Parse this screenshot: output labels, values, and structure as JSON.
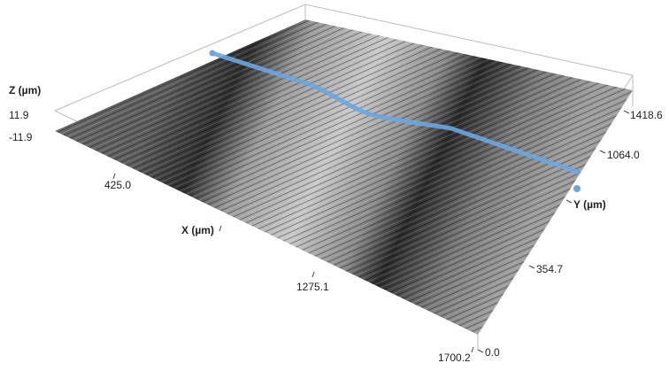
{
  "z_axis": {
    "label": "Z (µm)",
    "ticks": [
      "11.9",
      "-11.9"
    ]
  },
  "x_axis": {
    "label": "X (µm)",
    "ticks": [
      "425.0",
      "1275.1",
      "1700.2"
    ]
  },
  "y_axis": {
    "label": "Y (µm)",
    "ticks": [
      "0.0",
      "354.7",
      "1064.0",
      "1418.6"
    ]
  }
}
